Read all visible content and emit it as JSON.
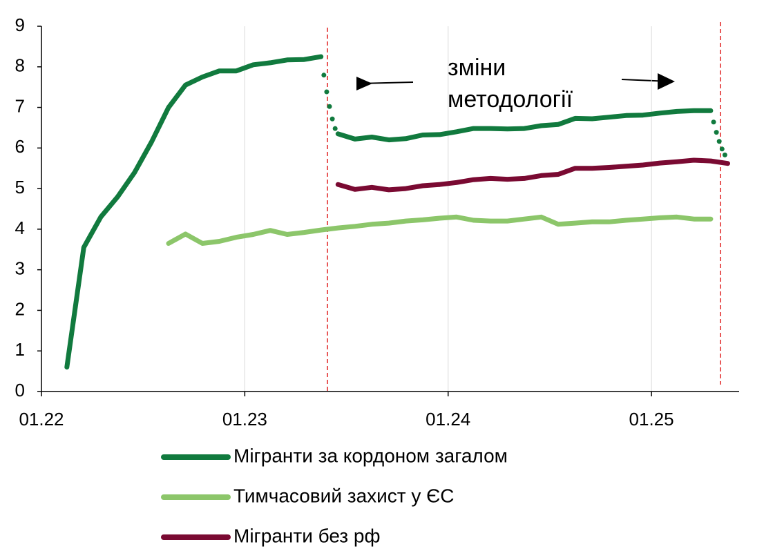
{
  "chart_data": {
    "type": "line",
    "categories": [
      "01.22",
      null,
      null,
      null,
      null,
      null,
      null,
      null,
      null,
      null,
      null,
      null,
      "01.23",
      null,
      null,
      null,
      null,
      null,
      null,
      null,
      null,
      null,
      null,
      null,
      "01.24",
      null,
      null,
      null,
      null,
      null,
      null,
      null,
      null,
      null,
      null,
      null,
      "01.25",
      null,
      null,
      null,
      null
    ],
    "series": [
      {
        "name": "Мігранти за кордоном загалом",
        "color": "#117a3e",
        "dotted_steps": [
          16,
          39
        ],
        "values": [
          null,
          0.6,
          3.55,
          4.3,
          4.8,
          5.4,
          6.15,
          7.0,
          7.55,
          7.75,
          7.9,
          7.9,
          8.05,
          8.1,
          8.17,
          8.18,
          8.25,
          6.35,
          6.22,
          6.27,
          6.2,
          6.23,
          6.32,
          6.33,
          6.4,
          6.48,
          6.48,
          6.47,
          6.48,
          6.55,
          6.58,
          6.73,
          6.72,
          6.76,
          6.8,
          6.81,
          6.86,
          6.9,
          6.92,
          6.92,
          5.75
        ]
      },
      {
        "name": "Тимчасовий захист у ЄС",
        "color": "#8cc66a",
        "values": [
          null,
          null,
          null,
          null,
          null,
          null,
          null,
          3.65,
          3.88,
          3.65,
          3.7,
          3.8,
          3.87,
          3.97,
          3.87,
          3.92,
          3.98,
          4.03,
          4.07,
          4.12,
          4.15,
          4.2,
          4.23,
          4.27,
          4.3,
          4.22,
          4.2,
          4.2,
          4.25,
          4.3,
          4.12,
          4.15,
          4.18,
          4.18,
          4.22,
          4.25,
          4.28,
          4.3,
          4.25,
          4.25,
          null
        ]
      },
      {
        "name": "Мігранти без рф",
        "color": "#7a0a32",
        "values": [
          null,
          null,
          null,
          null,
          null,
          null,
          null,
          null,
          null,
          null,
          null,
          null,
          null,
          null,
          null,
          null,
          null,
          5.1,
          4.98,
          5.03,
          4.97,
          5.0,
          5.07,
          5.1,
          5.15,
          5.22,
          5.25,
          5.23,
          5.25,
          5.32,
          5.35,
          5.5,
          5.5,
          5.52,
          5.55,
          5.58,
          5.63,
          5.66,
          5.7,
          5.68,
          5.62
        ]
      }
    ],
    "ylim": [
      0,
      9
    ],
    "yticks": [
      0,
      1,
      2,
      3,
      4,
      5,
      6,
      7,
      8,
      9
    ],
    "annotation": [
      "зміни",
      "методології"
    ]
  }
}
